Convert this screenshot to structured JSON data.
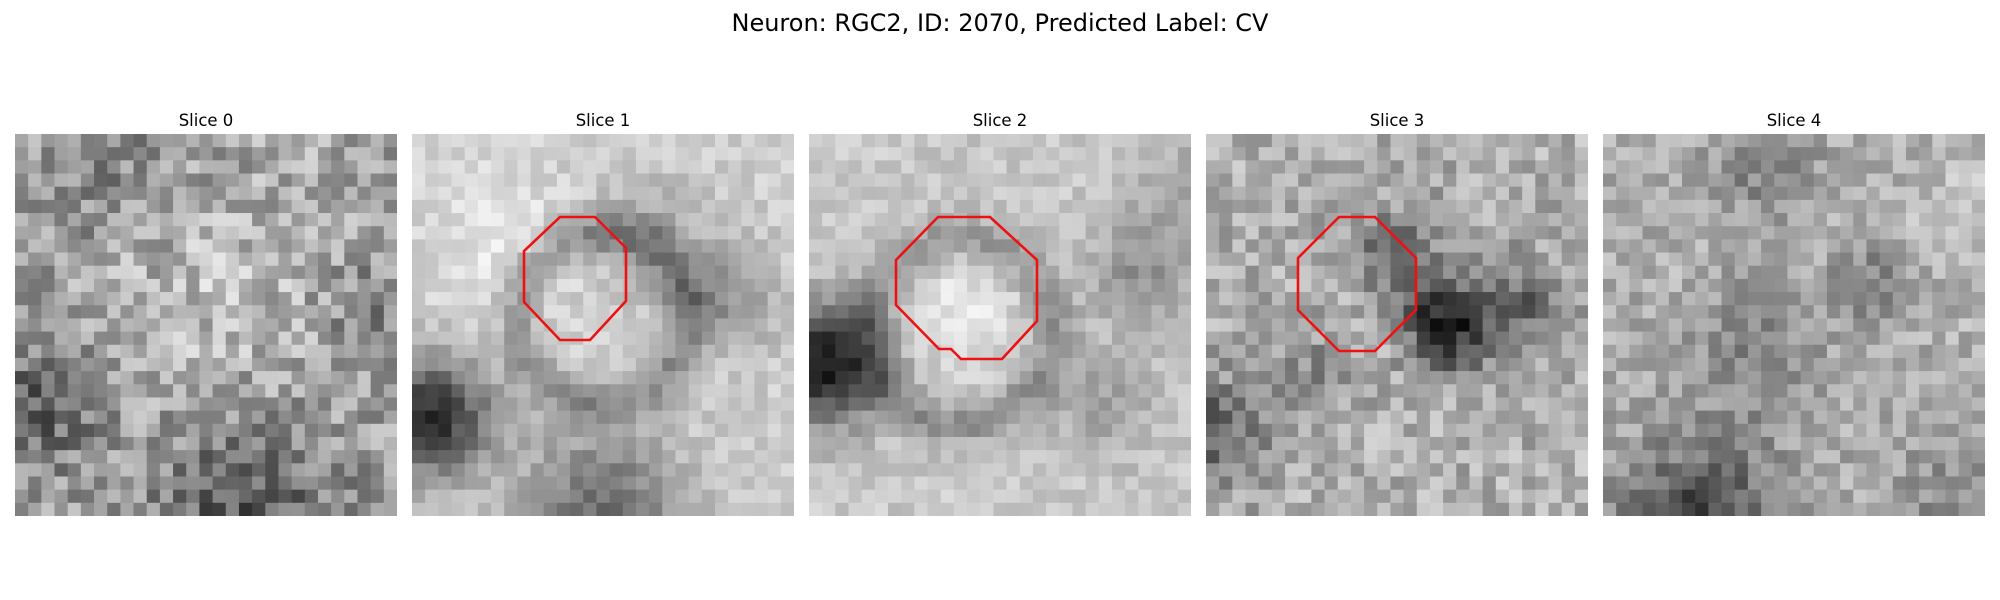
{
  "figure": {
    "title": "Neuron: RGC2, ID: 2070, Predicted Label: CV"
  },
  "panels": [
    {
      "title": "Slice 0",
      "has_contour": false
    },
    {
      "title": "Slice 1",
      "has_contour": true
    },
    {
      "title": "Slice 2",
      "has_contour": true
    },
    {
      "title": "Slice 3",
      "has_contour": true
    },
    {
      "title": "Slice 4",
      "has_contour": false
    }
  ],
  "colors": {
    "contour": "#ee1111",
    "colormap": "grayscale"
  }
}
